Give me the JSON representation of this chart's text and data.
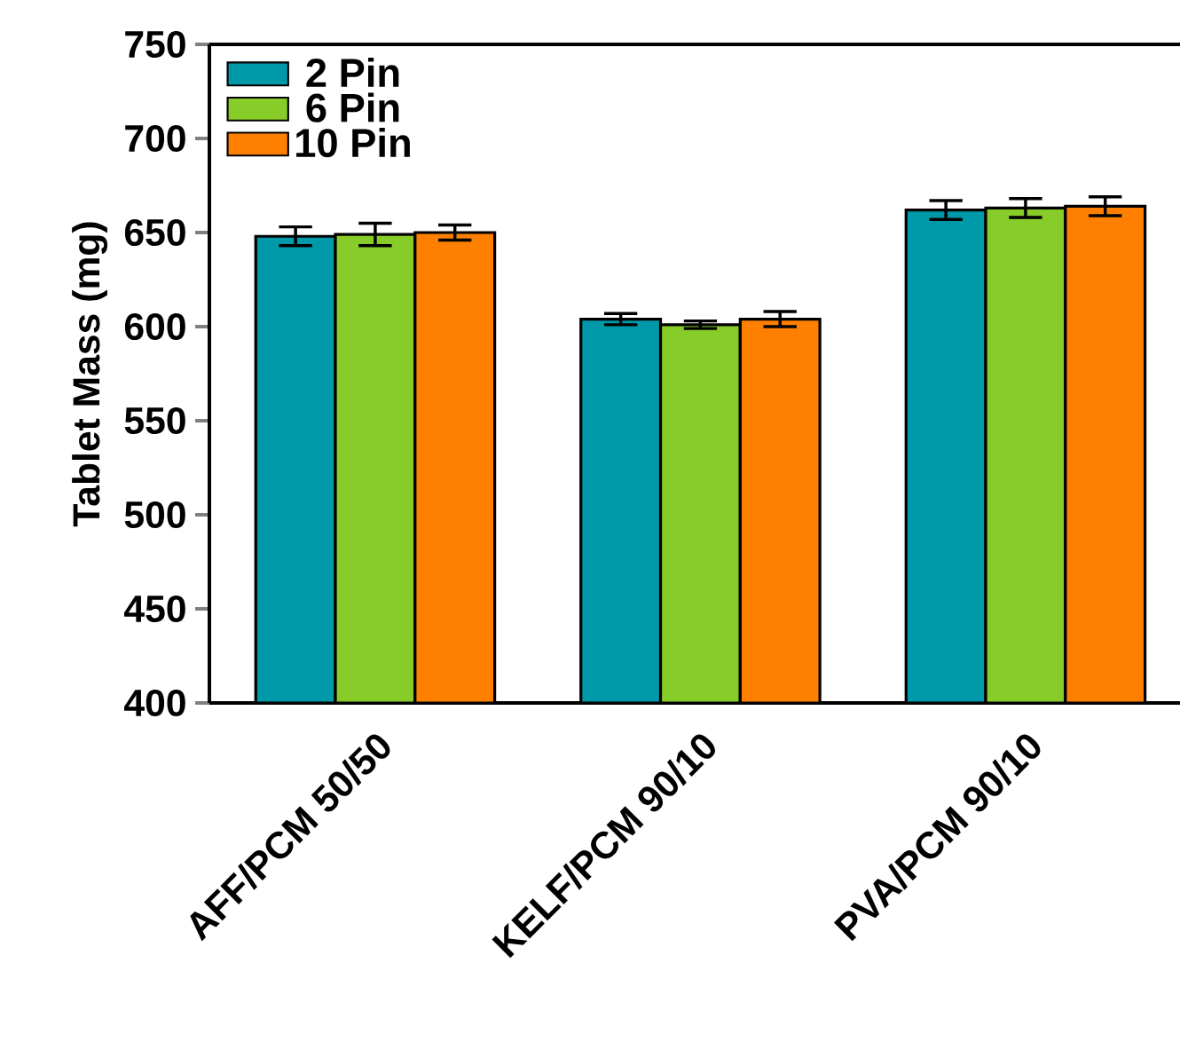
{
  "chart_data": {
    "type": "bar",
    "ylabel": "Tablet Mass  (mg)",
    "categories": [
      "AFF/PCM 50/50",
      "KELF/PCM 90/10",
      "PVA/PCM 90/10"
    ],
    "series": [
      {
        "name": "2 Pin",
        "color": "#0099aa",
        "values": [
          648,
          604,
          662
        ],
        "errors": [
          5,
          3,
          5
        ]
      },
      {
        "name": "6 Pin",
        "color": "#88cc2a",
        "values": [
          649,
          601,
          663
        ],
        "errors": [
          6,
          2,
          5
        ]
      },
      {
        "name": "10 Pin",
        "color": "#ff8000",
        "values": [
          650,
          604,
          664
        ],
        "errors": [
          4,
          4,
          5
        ]
      }
    ],
    "ylim": [
      400,
      750
    ],
    "yticks": [
      400,
      450,
      500,
      550,
      600,
      650,
      700,
      750
    ],
    "legend": "top left"
  }
}
